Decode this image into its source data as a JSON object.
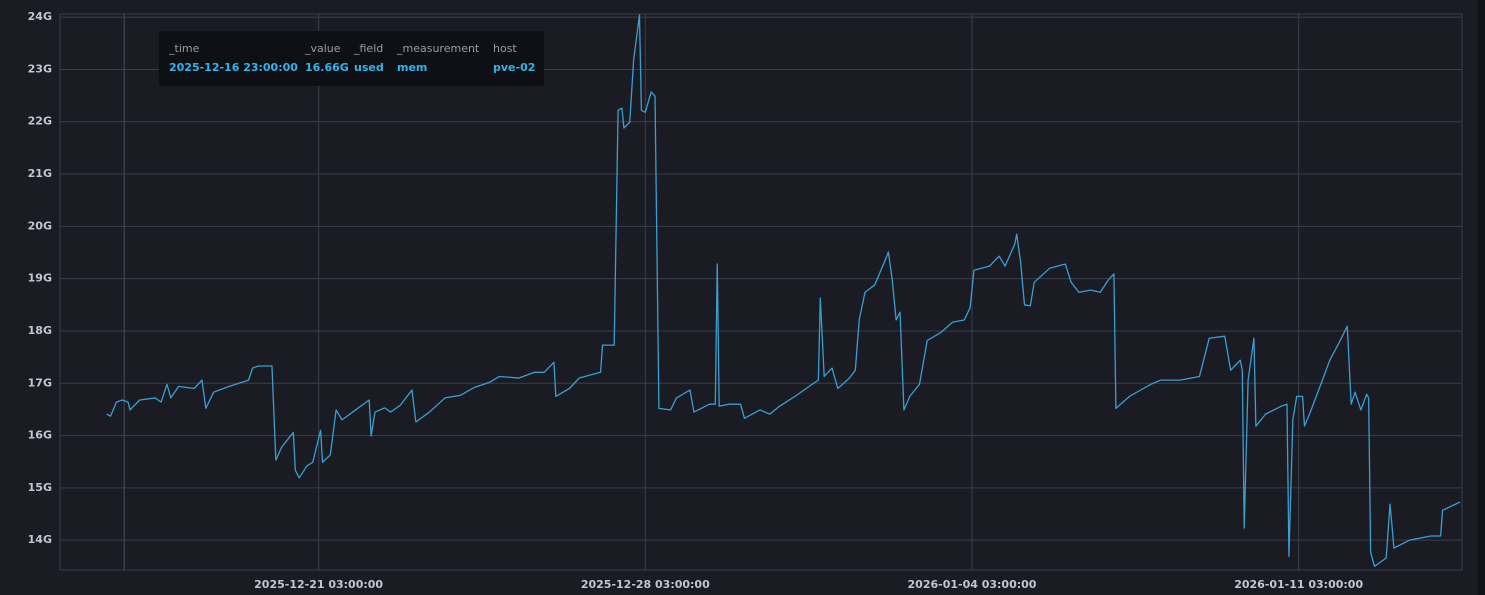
{
  "chart_data": {
    "type": "line",
    "color": "#3a9fd2",
    "grid": true,
    "x": [
      "2025-12-16 14:00:00",
      "2025-12-16 16:00:00",
      "2025-12-16 19:00:00",
      "2025-12-16 22:00:00",
      "2025-12-17 01:00:00",
      "2025-12-17 02:00:00",
      "2025-12-17 07:00:00",
      "2025-12-17 15:00:00",
      "2025-12-17 18:00:00",
      "2025-12-17 21:00:00",
      "2025-12-17 23:00:00",
      "2025-12-18 03:00:00",
      "2025-12-18 11:00:00",
      "2025-12-18 15:00:00",
      "2025-12-18 17:00:00",
      "2025-12-18 21:00:00",
      "2025-12-19 05:00:00",
      "2025-12-19 10:00:00",
      "2025-12-19 15:00:00",
      "2025-12-19 17:00:00",
      "2025-12-19 20:00:00",
      "2025-12-20 03:00:00",
      "2025-12-20 05:00:00",
      "2025-12-20 08:00:00",
      "2025-12-20 14:00:00",
      "2025-12-20 15:00:00",
      "2025-12-20 17:00:00",
      "2025-12-20 21:00:00",
      "2025-12-21 00:00:00",
      "2025-12-21 04:00:00",
      "2025-12-21 05:00:00",
      "2025-12-21 09:00:00",
      "2025-12-21 12:00:00",
      "2025-12-21 15:00:00",
      "2025-12-21 22:00:00",
      "2025-12-22 05:00:00",
      "2025-12-22 06:00:00",
      "2025-12-22 08:00:00",
      "2025-12-22 13:00:00",
      "2025-12-22 16:00:00",
      "2025-12-22 21:00:00",
      "2025-12-23 03:00:00",
      "2025-12-23 05:00:00",
      "2025-12-23 12:00:00",
      "2025-12-23 20:00:00",
      "2025-12-24 04:00:00",
      "2025-12-24 11:00:00",
      "2025-12-24 19:00:00",
      "2025-12-25 00:00:00",
      "2025-12-25 10:00:00",
      "2025-12-25 18:00:00",
      "2025-12-25 23:00:00",
      "2025-12-26 04:00:00",
      "2025-12-26 05:00:00",
      "2025-12-26 12:00:00",
      "2025-12-26 17:00:00",
      "2025-12-27 04:00:00",
      "2025-12-27 05:00:00",
      "2025-12-27 11:00:00",
      "2025-12-27 13:00:00",
      "2025-12-27 15:00:00",
      "2025-12-27 16:00:00",
      "2025-12-27 19:00:00",
      "2025-12-27 21:00:00",
      "2025-12-28 00:00:00",
      "2025-12-28 01:00:00",
      "2025-12-28 03:00:00",
      "2025-12-28 06:00:00",
      "2025-12-28 08:00:00",
      "2025-12-28 10:00:00",
      "2025-12-28 16:00:00",
      "2025-12-28 19:00:00",
      "2025-12-29 02:00:00",
      "2025-12-29 04:00:00",
      "2025-12-29 12:00:00",
      "2025-12-29 15:00:00",
      "2025-12-29 16:00:00",
      "2025-12-29 17:00:00",
      "2025-12-29 22:00:00",
      "2025-12-30 04:00:00",
      "2025-12-30 06:00:00",
      "2025-12-30 14:00:00",
      "2025-12-30 19:00:00",
      "2025-12-31 00:00:00",
      "2025-12-31 08:00:00",
      "2025-12-31 16:00:00",
      "2025-12-31 20:00:00",
      "2025-12-31 21:00:00",
      "2025-12-31 23:00:00",
      "2026-01-01 03:00:00",
      "2026-01-01 06:00:00",
      "2026-01-01 12:00:00",
      "2026-01-01 15:00:00",
      "2026-01-01 17:00:00",
      "2026-01-01 20:00:00",
      "2026-01-02 01:00:00",
      "2026-01-02 06:00:00",
      "2026-01-02 08:00:00",
      "2026-01-02 10:00:00",
      "2026-01-02 12:00:00",
      "2026-01-02 14:00:00",
      "2026-01-02 16:00:00",
      "2026-01-02 19:00:00",
      "2026-01-03 00:00:00",
      "2026-01-03 04:00:00",
      "2026-01-03 11:00:00",
      "2026-01-03 17:00:00",
      "2026-01-03 23:00:00",
      "2026-01-04 02:00:00",
      "2026-01-04 04:00:00",
      "2026-01-04 12:00:00",
      "2026-01-04 17:00:00",
      "2026-01-04 20:00:00",
      "2026-01-05 01:00:00",
      "2026-01-05 02:00:00",
      "2026-01-05 04:00:00",
      "2026-01-05 06:00:00",
      "2026-01-05 09:00:00",
      "2026-01-05 11:00:00",
      "2026-01-05 19:00:00",
      "2026-01-06 03:00:00",
      "2026-01-06 06:00:00",
      "2026-01-06 10:00:00",
      "2026-01-06 16:00:00",
      "2026-01-06 21:00:00",
      "2026-01-07 01:00:00",
      "2026-01-07 04:00:00",
      "2026-01-07 05:00:00",
      "2026-01-07 12:00:00",
      "2026-01-07 23:00:00",
      "2026-01-08 04:00:00",
      "2026-01-08 14:00:00",
      "2026-01-09 00:00:00",
      "2026-01-09 05:00:00",
      "2026-01-09 13:00:00",
      "2026-01-09 16:00:00",
      "2026-01-09 21:00:00",
      "2026-01-09 22:00:00",
      "2026-01-09 23:00:00",
      "2026-01-10 01:00:00",
      "2026-01-10 04:00:00",
      "2026-01-10 05:00:00",
      "2026-01-10 10:00:00",
      "2026-01-10 18:00:00",
      "2026-01-10 21:00:00",
      "2026-01-10 22:00:00",
      "2026-01-11 00:00:00",
      "2026-01-11 02:00:00",
      "2026-01-11 05:00:00",
      "2026-01-11 06:00:00",
      "2026-01-11 09:00:00",
      "2026-01-11 14:00:00",
      "2026-01-11 19:00:00",
      "2026-01-12 00:00:00",
      "2026-01-12 04:00:00",
      "2026-01-12 06:00:00",
      "2026-01-12 08:00:00",
      "2026-01-12 11:00:00",
      "2026-01-12 14:00:00",
      "2026-01-12 15:00:00",
      "2026-01-12 16:00:00",
      "2026-01-12 18:00:00",
      "2026-01-13 00:00:00",
      "2026-01-13 02:00:00",
      "2026-01-13 04:00:00",
      "2026-01-13 12:00:00",
      "2026-01-13 23:00:00",
      "2026-01-14 04:00:00",
      "2026-01-14 05:00:00",
      "2026-01-14 14:00:00"
    ],
    "values": [
      16.41,
      16.37,
      16.64,
      16.68,
      16.64,
      16.49,
      16.68,
      16.72,
      16.64,
      16.98,
      16.72,
      16.94,
      16.9,
      17.06,
      16.52,
      16.83,
      16.94,
      17.0,
      17.06,
      17.29,
      17.33,
      17.33,
      15.53,
      15.78,
      16.06,
      15.34,
      15.19,
      15.42,
      15.49,
      16.1,
      15.49,
      15.63,
      16.49,
      16.3,
      16.49,
      16.68,
      15.99,
      16.45,
      16.53,
      16.45,
      16.58,
      16.87,
      16.26,
      16.45,
      16.72,
      16.77,
      16.92,
      17.02,
      17.13,
      17.1,
      17.21,
      17.21,
      17.4,
      16.75,
      16.9,
      17.1,
      17.21,
      17.73,
      17.73,
      22.22,
      22.26,
      21.88,
      21.99,
      23.18,
      24.04,
      22.22,
      22.18,
      22.57,
      22.49,
      16.52,
      16.49,
      16.72,
      16.87,
      16.45,
      16.6,
      16.6,
      19.28,
      16.56,
      16.6,
      16.6,
      16.33,
      16.49,
      16.41,
      16.56,
      16.75,
      16.96,
      17.06,
      18.63,
      17.13,
      17.29,
      16.9,
      17.1,
      17.25,
      18.21,
      18.74,
      18.88,
      19.32,
      19.51,
      18.97,
      18.21,
      18.36,
      16.49,
      16.75,
      16.98,
      17.82,
      17.97,
      18.17,
      18.21,
      18.44,
      19.16,
      19.24,
      19.43,
      19.24,
      19.66,
      19.85,
      19.32,
      18.5,
      18.48,
      18.93,
      19.2,
      19.28,
      18.93,
      18.74,
      18.78,
      18.74,
      18.97,
      19.09,
      16.52,
      16.75,
      16.98,
      17.06,
      17.06,
      17.13,
      17.86,
      17.9,
      17.25,
      17.44,
      17.25,
      14.23,
      17.06,
      17.86,
      16.18,
      16.41,
      16.56,
      16.6,
      13.69,
      16.3,
      16.75,
      16.75,
      16.18,
      16.45,
      16.94,
      17.44,
      17.79,
      18.09,
      16.6,
      16.83,
      16.49,
      16.79,
      16.72,
      13.77,
      13.5,
      13.66,
      14.69,
      13.85,
      14.0,
      14.08,
      14.08,
      14.57,
      14.73
    ],
    "xlim": [
      "2025-12-15 14:00:00",
      "2026-01-14 15:00:00"
    ],
    "xticks": [
      "2025-12-21 03:00:00",
      "2025-12-28 03:00:00",
      "2026-01-04 03:00:00",
      "2026-01-11 03:00:00"
    ],
    "ylim": [
      13.43,
      24.06
    ],
    "yticks": [
      {
        "value": 14,
        "label": "14G"
      },
      {
        "value": 15,
        "label": "15G"
      },
      {
        "value": 16,
        "label": "16G"
      },
      {
        "value": 17,
        "label": "17G"
      },
      {
        "value": 18,
        "label": "18G"
      },
      {
        "value": 19,
        "label": "19G"
      },
      {
        "value": 20,
        "label": "20G"
      },
      {
        "value": 21,
        "label": "21G"
      },
      {
        "value": 22,
        "label": "22G"
      },
      {
        "value": 23,
        "label": "23G"
      },
      {
        "value": 24,
        "label": "24G"
      }
    ],
    "tooltip": {
      "columns": [
        "_time",
        "_value",
        "_field",
        "_measurement",
        "host"
      ],
      "row": [
        "2025-12-16 23:00:00",
        "16.66G",
        "used",
        "mem",
        "pve-02"
      ]
    }
  }
}
